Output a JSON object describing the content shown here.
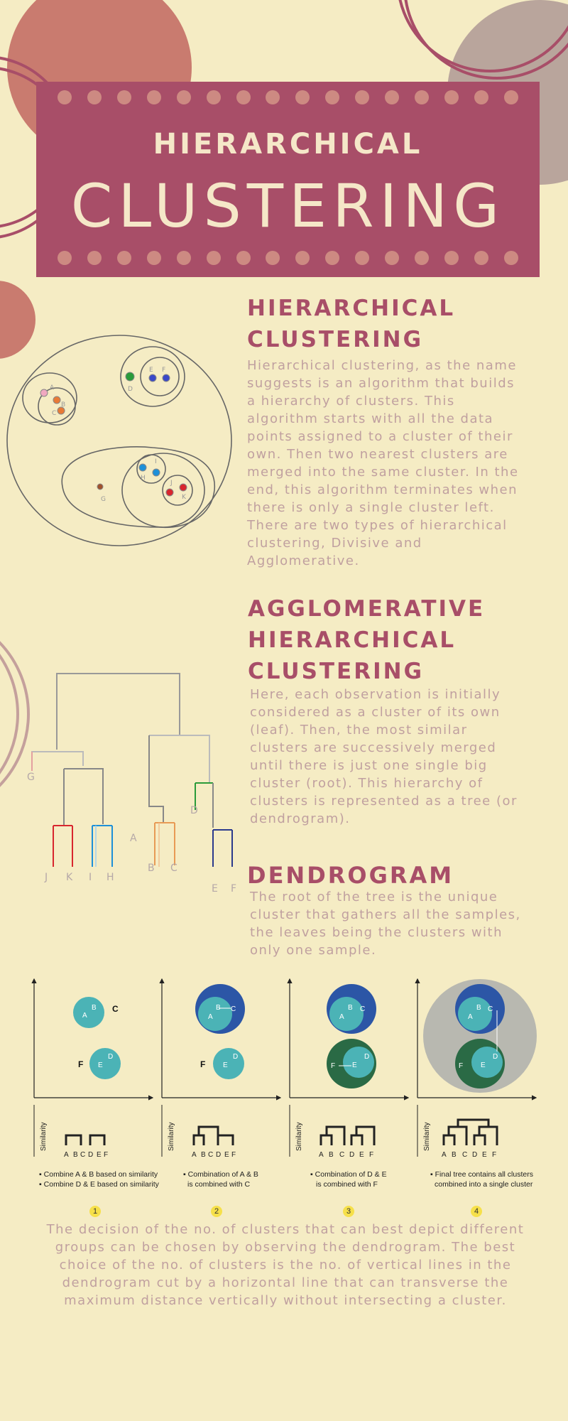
{
  "banner": {
    "subtitle": "HIERARCHICAL",
    "title": "CLUSTERING"
  },
  "section1": {
    "heading_line1": "HIERARCHICAL",
    "heading_line2": "CLUSTERING",
    "lines": [
      "Hierarchical clustering, as the name",
      "suggests is an algorithm that builds",
      "a hierarchy of clusters. This",
      "algorithm starts with all the data",
      "points assigned to a cluster of their",
      "own. Then two nearest clusters are",
      "merged into the same cluster. In the",
      "end, this algorithm terminates when",
      "there is only a single cluster left.",
      "There are two types of hierarchical",
      "clustering, Divisive and",
      "Agglomerative."
    ]
  },
  "section2": {
    "heading_line1": "AGGLOMERATIVE",
    "heading_line2": "HIERARCHICAL",
    "heading_line3": "CLUSTERING",
    "lines": [
      "Here, each observation is initially",
      "considered as a cluster of its own",
      "(leaf). Then, the most similar",
      "clusters are successively merged",
      "until there is just one single big",
      "cluster (root). This hierarchy of",
      "clusters is represented as a tree (or",
      "dendrogram)."
    ]
  },
  "section3": {
    "heading": "DENDROGRAM",
    "lines": [
      "The root of the tree is the unique",
      "cluster that gathers all the samples,",
      "the leaves being the clusters with",
      "only one sample."
    ]
  },
  "cluster_diagram": {
    "point_labels": [
      "A",
      "B",
      "C",
      "D",
      "E",
      "F",
      "G",
      "H",
      "I",
      "J",
      "K"
    ]
  },
  "dendrogram": {
    "leaf_labels": [
      "J",
      "K",
      "I",
      "H",
      "B",
      "C",
      "E",
      "F"
    ],
    "inner_labels": [
      "G",
      "A",
      "D"
    ]
  },
  "panels": {
    "axis_label": "Similarity",
    "leaf_labels": [
      "A",
      "B",
      "C",
      "D",
      "E",
      "F"
    ],
    "p1_caption_1": "Combine A & B based on similarity",
    "p1_caption_2": "Combine D & E based on similarity",
    "p2_caption_1": "Combination of A & B",
    "p2_caption_2": "is combined with C",
    "p3_caption_1": "Combination of D & E",
    "p3_caption_2": "is combined with F",
    "p4_caption_1": "Final tree contains all clusters",
    "p4_caption_2": "combined into a single cluster",
    "steps": [
      "1",
      "2",
      "3",
      "4"
    ]
  },
  "bottom": {
    "lines": [
      "The decision of the no. of clusters that can best depict different",
      "groups can be chosen by observing the dendrogram. The best",
      "choice of the no. of clusters is the no. of vertical lines in the",
      "dendrogram cut by a horizontal line that can transverse the",
      "maximum distance vertically without intersecting a cluster."
    ]
  },
  "colors": {
    "background": "#f5ecc4",
    "accent": "#a84e68",
    "blob": "#c97b6f",
    "body_text": "#c0a0a0",
    "teal": "#4bb3b6",
    "blue": "#2c56a6",
    "green": "#2a6a45"
  }
}
